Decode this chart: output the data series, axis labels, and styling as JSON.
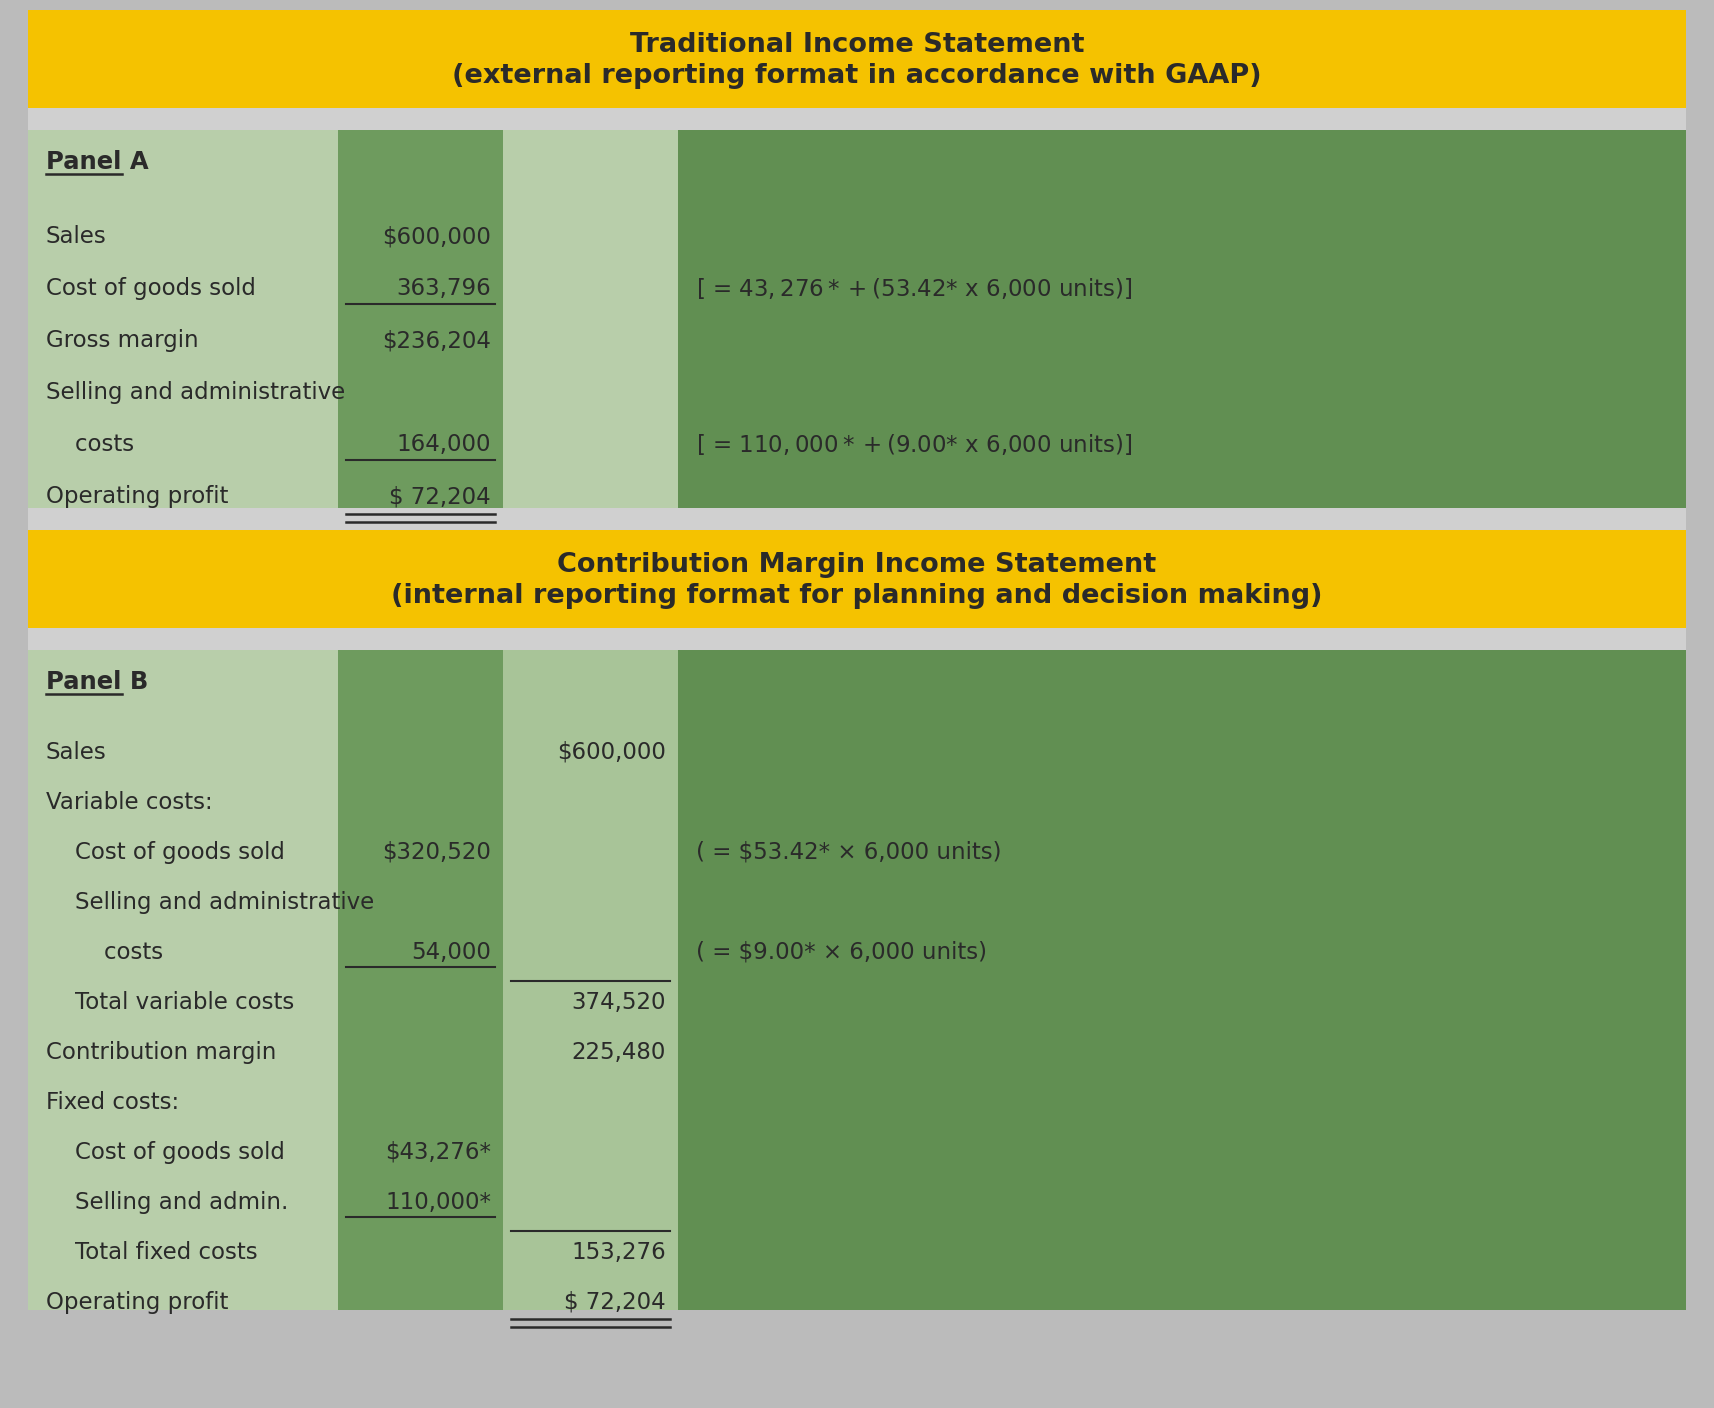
{
  "title1_line1": "Traditional Income Statement",
  "title1_line2": "(external reporting format in accordance with GAAP)",
  "title2_line1": "Contribution Margin Income Statement",
  "title2_line2": "(internal reporting format for planning and decision making)",
  "title_bg": "#F5C200",
  "title_text_color": "#1a1a1a",
  "panel_light_green": "#b8ceaa",
  "panel_mid_green": "#6e9b5e",
  "panel_col2_green": "#a8c498",
  "panel_dark_green": "#618f52",
  "outer_bg": "#bbbbbb",
  "text_color": "#2a2a2a",
  "panelA_rows": [
    {
      "label": "Sales",
      "indent": 0,
      "col1": "$600,000",
      "col2": "",
      "col3": "",
      "ul1": false,
      "ul2": false,
      "dbl": false
    },
    {
      "label": "Cost of goods sold",
      "indent": 0,
      "col1": "363,796",
      "col2": "",
      "col3": "[ = $43,276* + ($53.42* x 6,000 units)]",
      "ul1": true,
      "ul2": false,
      "dbl": false
    },
    {
      "label": "Gross margin",
      "indent": 0,
      "col1": "$236,204",
      "col2": "",
      "col3": "",
      "ul1": false,
      "ul2": false,
      "dbl": false
    },
    {
      "label": "Selling and administrative",
      "indent": 0,
      "col1": "",
      "col2": "",
      "col3": "",
      "ul1": false,
      "ul2": false,
      "dbl": false
    },
    {
      "label": "    costs",
      "indent": 0,
      "col1": "164,000",
      "col2": "",
      "col3": "[ = $110,000* + ($9.00* x 6,000 units)]",
      "ul1": true,
      "ul2": false,
      "dbl": false
    },
    {
      "label": "Operating profit",
      "indent": 0,
      "col1": "$ 72,204",
      "col2": "",
      "col3": "",
      "ul1": false,
      "ul2": false,
      "dbl": true
    }
  ],
  "panelB_rows": [
    {
      "label": "Sales",
      "indent": 0,
      "col1": "",
      "col2": "$600,000",
      "col3": "",
      "ul1": false,
      "ul2": false,
      "dbl": false
    },
    {
      "label": "Variable costs:",
      "indent": 0,
      "col1": "",
      "col2": "",
      "col3": "",
      "ul1": false,
      "ul2": false,
      "dbl": false
    },
    {
      "label": "    Cost of goods sold",
      "indent": 1,
      "col1": "$320,520",
      "col2": "",
      "col3": "( = $53.42* × 6,000 units)",
      "ul1": false,
      "ul2": false,
      "dbl": false
    },
    {
      "label": "    Selling and administrative",
      "indent": 1,
      "col1": "",
      "col2": "",
      "col3": "",
      "ul1": false,
      "ul2": false,
      "dbl": false
    },
    {
      "label": "        costs",
      "indent": 1,
      "col1": "54,000",
      "col2": "",
      "col3": "( = $9.00* × 6,000 units)",
      "ul1": true,
      "ul2": false,
      "dbl": false
    },
    {
      "label": "    Total variable costs",
      "indent": 0,
      "col1": "",
      "col2": "374,520",
      "col3": "",
      "ul1": false,
      "ul2": true,
      "dbl": false
    },
    {
      "label": "Contribution margin",
      "indent": 0,
      "col1": "",
      "col2": "225,480",
      "col3": "",
      "ul1": false,
      "ul2": false,
      "dbl": false
    },
    {
      "label": "Fixed costs:",
      "indent": 0,
      "col1": "",
      "col2": "",
      "col3": "",
      "ul1": false,
      "ul2": false,
      "dbl": false
    },
    {
      "label": "    Cost of goods sold",
      "indent": 1,
      "col1": "$43,276*",
      "col2": "",
      "col3": "",
      "ul1": false,
      "ul2": false,
      "dbl": false
    },
    {
      "label": "    Selling and admin.",
      "indent": 1,
      "col1": "110,000*",
      "col2": "",
      "col3": "",
      "ul1": true,
      "ul2": false,
      "dbl": false
    },
    {
      "label": "    Total fixed costs",
      "indent": 0,
      "col1": "",
      "col2": "153,276",
      "col3": "",
      "ul1": false,
      "ul2": true,
      "dbl": false
    },
    {
      "label": "Operating profit",
      "indent": 0,
      "col1": "",
      "col2": "$ 72,204",
      "col3": "",
      "ul1": false,
      "ul2": false,
      "dbl": true
    }
  ]
}
